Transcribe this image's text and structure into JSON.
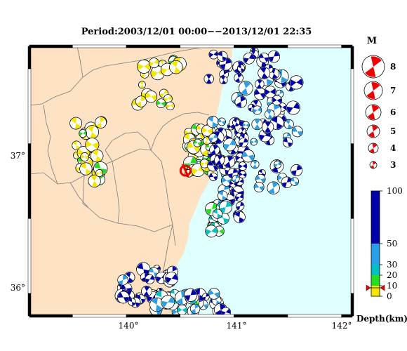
{
  "title": "Period:2003/12/01 00:00−−2013/12/01 22:35",
  "map": {
    "lon_range": [
      139.1,
      142.1
    ],
    "lat_range": [
      35.85,
      37.65
    ],
    "lon_ticks": [
      140,
      141,
      142
    ],
    "lat_ticks": [
      36,
      37
    ],
    "lon_tick_labels": [
      "140°",
      "141°",
      "142°"
    ],
    "lat_tick_labels": [
      "36°",
      "37°"
    ],
    "colors": {
      "land": "#fde3c3",
      "sea": "#e0ffff",
      "border": "#7b7b7b"
    }
  },
  "magnitude_legend": {
    "title": "M",
    "labels": [
      "8",
      "7",
      "6",
      "5",
      "4",
      "3"
    ],
    "color": "#ee0000"
  },
  "depth_scale": {
    "title": "Depth(km)",
    "tick_labels": [
      "100",
      "50",
      "30",
      "20",
      "10",
      "0"
    ],
    "tick_values": [
      100,
      50,
      30,
      20,
      10,
      0
    ],
    "bands": [
      {
        "from": 0,
        "to": 10,
        "color": "#f3e600"
      },
      {
        "from": 10,
        "to": 20,
        "color": "#22dd22"
      },
      {
        "from": 20,
        "to": 30,
        "color": "#00c0c0"
      },
      {
        "from": 30,
        "to": 50,
        "color": "#2aa0e6"
      },
      {
        "from": 50,
        "to": 100,
        "color": "#0000aa"
      }
    ],
    "marker_depth": 8
  },
  "epicenter": {
    "lon": 140.55,
    "lat": 36.82,
    "color": "#ee0000"
  }
}
